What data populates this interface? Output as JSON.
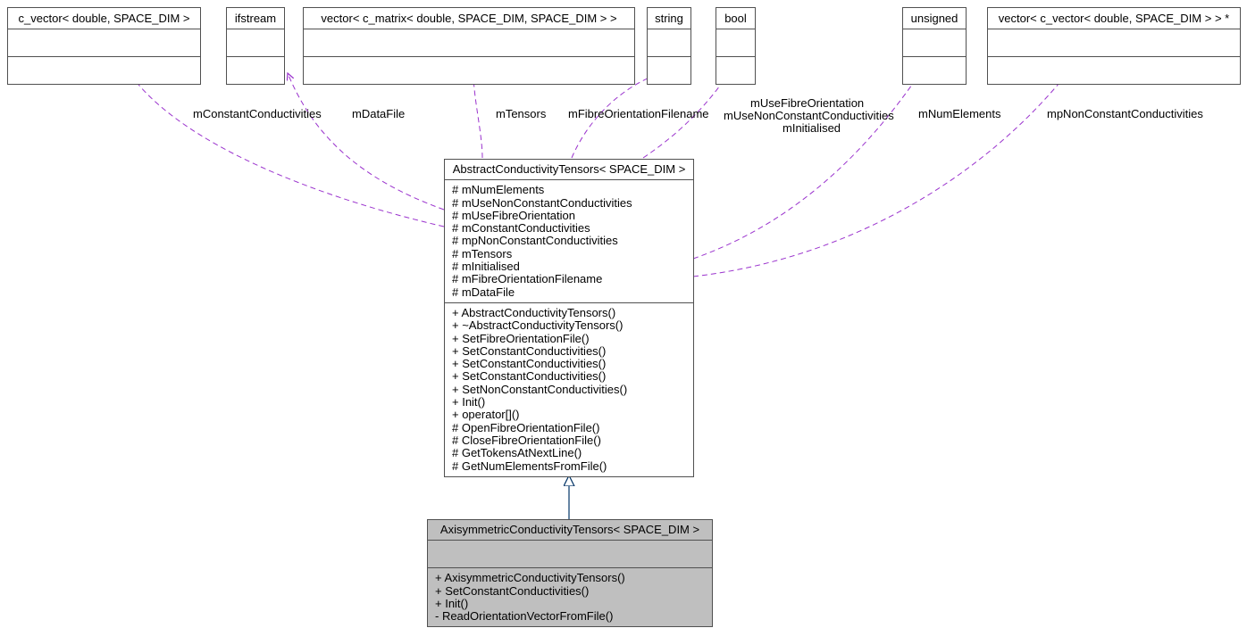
{
  "topNodes": {
    "n1": "c_vector< double, SPACE_DIM >",
    "n2": "ifstream",
    "n3": "vector< c_matrix< double, SPACE_DIM, SPACE_DIM > >",
    "n4": "string",
    "n5": "bool",
    "n6": "unsigned",
    "n7": "vector< c_vector< double, SPACE_DIM > > *"
  },
  "edgeLabels": {
    "e1": "mConstantConductivities",
    "e2": "mDataFile",
    "e3": "mTensors",
    "e4": "mFibreOrientationFilename",
    "e5a": "mUseFibreOrientation",
    "e5b": "mUseNonConstantConductivities",
    "e5c": "mInitialised",
    "e6": "mNumElements",
    "e7": "mpNonConstantConductivities"
  },
  "abstract": {
    "title": "AbstractConductivityTensors< SPACE_DIM >",
    "attrs": [
      "# mNumElements",
      "# mUseNonConstantConductivities",
      "# mUseFibreOrientation",
      "# mConstantConductivities",
      "# mpNonConstantConductivities",
      "# mTensors",
      "# mInitialised",
      "# mFibreOrientationFilename",
      "# mDataFile"
    ],
    "ops": [
      "+ AbstractConductivityTensors()",
      "+ ~AbstractConductivityTensors()",
      "+ SetFibreOrientationFile()",
      "+ SetConstantConductivities()",
      "+ SetConstantConductivities()",
      "+ SetConstantConductivities()",
      "+ SetNonConstantConductivities()",
      "+ Init()",
      "+ operator[]()",
      "# OpenFibreOrientationFile()",
      "# CloseFibreOrientationFile()",
      "# GetTokensAtNextLine()",
      "# GetNumElementsFromFile()"
    ]
  },
  "axi": {
    "title": "AxisymmetricConductivityTensors< SPACE_DIM >",
    "ops": [
      "+ AxisymmetricConductivityTensors()",
      "+ SetConstantConductivities()",
      "+ Init()",
      "- ReadOrientationVectorFromFile()"
    ]
  },
  "style": {
    "depColor": "#9a32cd",
    "inhColor": "#003366"
  }
}
